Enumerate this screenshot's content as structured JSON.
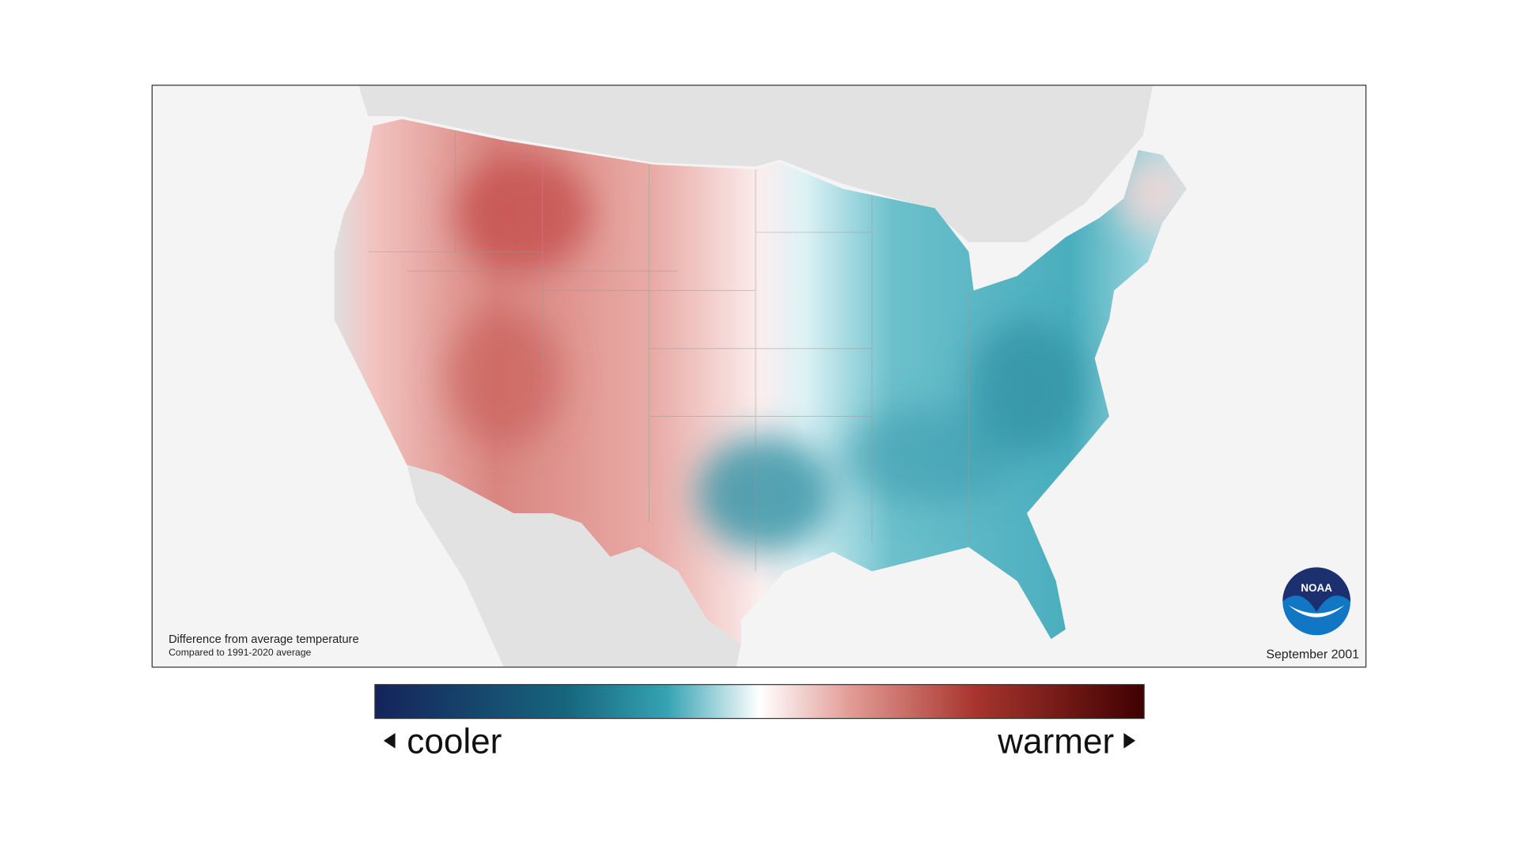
{
  "map": {
    "note_title": "Difference from average temperature",
    "note_subtitle": "Compared to 1991-2020 average",
    "date": "September 2001",
    "logo_text": "NOAA"
  },
  "legend": {
    "low_label": "cooler",
    "high_label": "warmer"
  }
}
